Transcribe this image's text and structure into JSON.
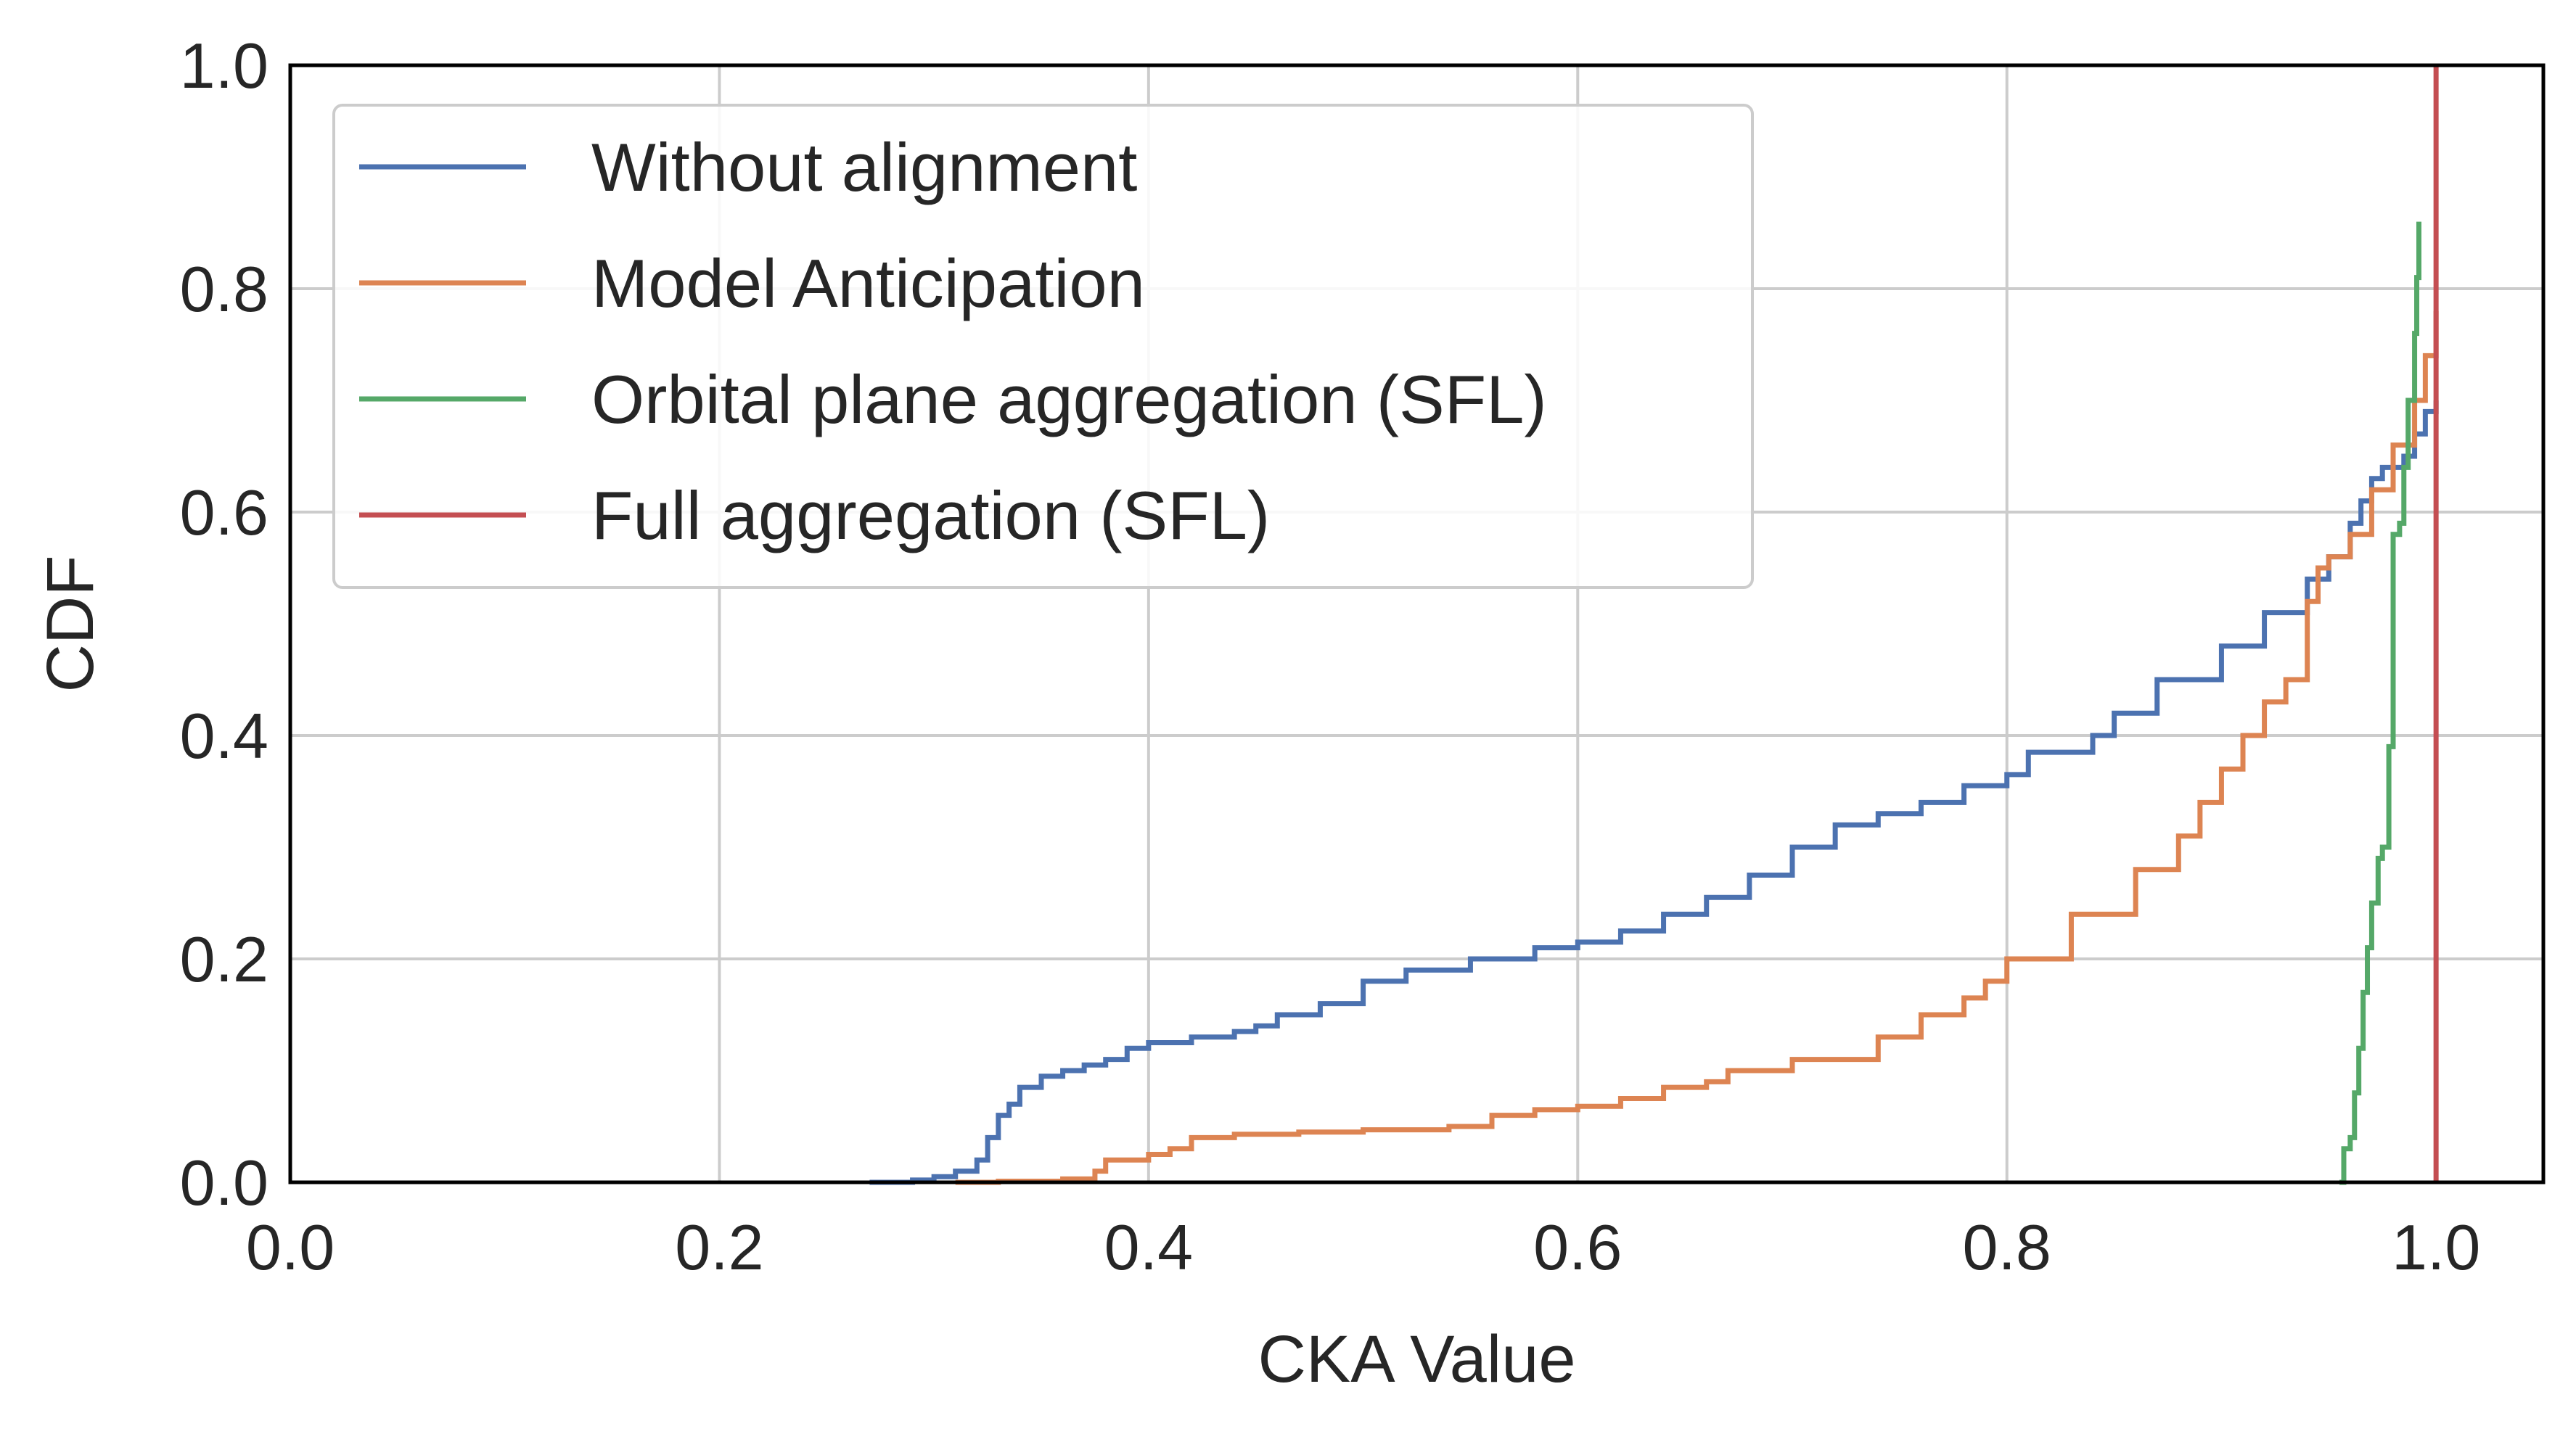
{
  "chart_data": {
    "type": "line",
    "xlabel": "CKA Value",
    "ylabel": "CDF",
    "xlim": [
      0.0,
      1.05
    ],
    "ylim": [
      0.0,
      1.0
    ],
    "xticks": [
      "0.0",
      "0.2",
      "0.4",
      "0.6",
      "0.8",
      "1.0"
    ],
    "yticks": [
      "0.0",
      "0.2",
      "0.4",
      "0.6",
      "0.8",
      "1.0"
    ],
    "grid": true,
    "legend_position": "upper-left",
    "series": [
      {
        "name": "Without alignment",
        "color": "#4c72b0",
        "x": [
          0.27,
          0.29,
          0.3,
          0.31,
          0.32,
          0.325,
          0.33,
          0.335,
          0.34,
          0.35,
          0.36,
          0.37,
          0.38,
          0.39,
          0.4,
          0.42,
          0.44,
          0.45,
          0.46,
          0.48,
          0.5,
          0.52,
          0.55,
          0.58,
          0.6,
          0.62,
          0.64,
          0.66,
          0.68,
          0.7,
          0.72,
          0.74,
          0.76,
          0.78,
          0.8,
          0.81,
          0.84,
          0.85,
          0.87,
          0.9,
          0.92,
          0.94,
          0.95,
          0.96,
          0.965,
          0.97,
          0.975,
          0.98,
          0.985,
          0.99,
          0.995,
          1.0
        ],
        "y": [
          0.0,
          0.002,
          0.005,
          0.01,
          0.02,
          0.04,
          0.06,
          0.07,
          0.085,
          0.095,
          0.1,
          0.105,
          0.11,
          0.12,
          0.125,
          0.13,
          0.135,
          0.14,
          0.15,
          0.16,
          0.18,
          0.19,
          0.2,
          0.21,
          0.215,
          0.225,
          0.24,
          0.255,
          0.275,
          0.3,
          0.32,
          0.33,
          0.34,
          0.355,
          0.365,
          0.385,
          0.4,
          0.42,
          0.45,
          0.48,
          0.51,
          0.54,
          0.56,
          0.59,
          0.61,
          0.63,
          0.64,
          0.64,
          0.65,
          0.67,
          0.69,
          0.7
        ]
      },
      {
        "name": "Model Anticipation",
        "color": "#dd8452",
        "x": [
          0.31,
          0.33,
          0.36,
          0.375,
          0.38,
          0.4,
          0.41,
          0.42,
          0.44,
          0.47,
          0.5,
          0.54,
          0.56,
          0.58,
          0.6,
          0.62,
          0.64,
          0.66,
          0.67,
          0.7,
          0.74,
          0.76,
          0.78,
          0.79,
          0.8,
          0.83,
          0.86,
          0.88,
          0.89,
          0.9,
          0.91,
          0.92,
          0.93,
          0.94,
          0.945,
          0.95,
          0.96,
          0.97,
          0.98,
          0.99,
          0.995,
          1.0
        ],
        "y": [
          0.0,
          0.001,
          0.003,
          0.01,
          0.02,
          0.025,
          0.03,
          0.04,
          0.043,
          0.045,
          0.047,
          0.05,
          0.06,
          0.065,
          0.068,
          0.075,
          0.085,
          0.09,
          0.1,
          0.11,
          0.13,
          0.15,
          0.165,
          0.18,
          0.2,
          0.24,
          0.28,
          0.31,
          0.34,
          0.37,
          0.4,
          0.43,
          0.45,
          0.52,
          0.55,
          0.56,
          0.58,
          0.62,
          0.66,
          0.7,
          0.74,
          0.78
        ]
      },
      {
        "name": "Orbital plane aggregation (SFL)",
        "color": "#55a868",
        "x": [
          0.955,
          0.957,
          0.96,
          0.962,
          0.964,
          0.966,
          0.968,
          0.97,
          0.973,
          0.975,
          0.978,
          0.98,
          0.983,
          0.985,
          0.987,
          0.99,
          0.991,
          0.992
        ],
        "y": [
          0.0,
          0.03,
          0.04,
          0.08,
          0.12,
          0.17,
          0.21,
          0.25,
          0.29,
          0.3,
          0.39,
          0.58,
          0.59,
          0.64,
          0.7,
          0.76,
          0.81,
          0.86
        ]
      },
      {
        "name": "Full aggregation (SFL)",
        "color": "#c44e52",
        "x": [
          1.0,
          1.0
        ],
        "y": [
          0.0,
          1.0
        ]
      }
    ]
  }
}
